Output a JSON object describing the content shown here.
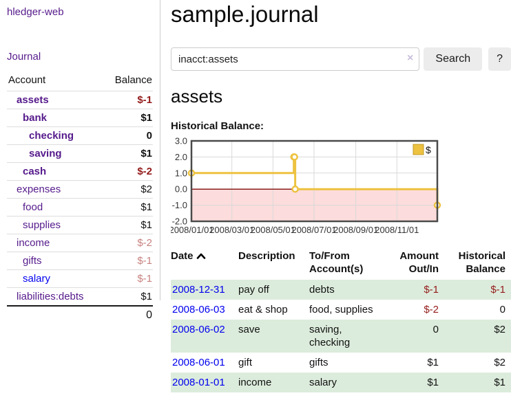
{
  "colors": {
    "link_visited_purple": "#551a8b",
    "link_blue": "#0000ee",
    "negative_strong": "#941b1b",
    "negative_soft": "#c78280",
    "row_stripe_green": "#dcecdc",
    "button_bg": "#ececec",
    "chart_series_gold": "#edc240",
    "chart_negative_region_pink": "#fcdcdc",
    "chart_zero_line_red": "#8b1c1c",
    "chart_border_gray": "#4a4a4a"
  },
  "app": {
    "title": "hledger-web",
    "nav_journal": "Journal"
  },
  "sidebar": {
    "columns": {
      "account": "Account",
      "balance": "Balance"
    },
    "accounts": [
      {
        "name": "assets",
        "level": 1,
        "bold": true,
        "name_color": "purple",
        "balance": "$-1",
        "balance_color": "negative-strong"
      },
      {
        "name": "bank",
        "level": 2,
        "bold": true,
        "name_color": "purple",
        "balance": "$1",
        "balance_color": "normal"
      },
      {
        "name": "checking",
        "level": 3,
        "bold": true,
        "name_color": "purple",
        "balance": "0",
        "balance_color": "normal"
      },
      {
        "name": "saving",
        "level": 3,
        "bold": true,
        "name_color": "purple",
        "balance": "$1",
        "balance_color": "normal"
      },
      {
        "name": "cash",
        "level": 2,
        "bold": true,
        "name_color": "purple",
        "balance": "$-2",
        "balance_color": "negative-strong"
      },
      {
        "name": "expenses",
        "level": 1,
        "bold": false,
        "name_color": "purple",
        "balance": "$2",
        "balance_color": "normal"
      },
      {
        "name": "food",
        "level": 2,
        "bold": false,
        "name_color": "purple",
        "balance": "$1",
        "balance_color": "normal"
      },
      {
        "name": "supplies",
        "level": 2,
        "bold": false,
        "name_color": "purple",
        "balance": "$1",
        "balance_color": "normal"
      },
      {
        "name": "income",
        "level": 1,
        "bold": false,
        "name_color": "purple",
        "balance": "$-2",
        "balance_color": "negative-soft"
      },
      {
        "name": "gifts",
        "level": 2,
        "bold": false,
        "name_color": "purple",
        "balance": "$-1",
        "balance_color": "negative-soft"
      },
      {
        "name": "salary",
        "level": 2,
        "bold": false,
        "name_color": "blue",
        "balance": "$-1",
        "balance_color": "negative-soft"
      },
      {
        "name": "liabilities:debts",
        "level": 1,
        "bold": false,
        "name_color": "purple",
        "balance": "$1",
        "balance_color": "normal"
      }
    ],
    "total": "0"
  },
  "main": {
    "title": "sample.journal",
    "search": {
      "value": "inacct:assets",
      "clear_icon": "×",
      "search_button": "Search",
      "help_button": "?"
    },
    "account_heading": "assets",
    "section_label": "Historical Balance:",
    "register": {
      "headers": [
        {
          "lines": [
            "Date"
          ],
          "align": "left",
          "sorted": "asc"
        },
        {
          "lines": [
            "Description"
          ],
          "align": "left"
        },
        {
          "lines": [
            "To/From",
            "Account(s)"
          ],
          "align": "left"
        },
        {
          "lines": [
            "Amount",
            "Out/In"
          ],
          "align": "right"
        },
        {
          "lines": [
            "Historical",
            "Balance"
          ],
          "align": "right"
        }
      ],
      "rows": [
        {
          "date": "2008-12-31",
          "description": "pay off",
          "accounts": "debts",
          "amount": "$-1",
          "amount_negative": true,
          "balance": "$-1",
          "balance_negative": true
        },
        {
          "date": "2008-06-03",
          "description": "eat & shop",
          "accounts": "food, supplies",
          "amount": "$-2",
          "amount_negative": true,
          "balance": "0",
          "balance_negative": false
        },
        {
          "date": "2008-06-02",
          "description": "save",
          "accounts": "saving, checking",
          "amount": "0",
          "amount_negative": false,
          "balance": "$2",
          "balance_negative": false
        },
        {
          "date": "2008-06-01",
          "description": "gift",
          "accounts": "gifts",
          "amount": "$1",
          "amount_negative": false,
          "balance": "$2",
          "balance_negative": false
        },
        {
          "date": "2008-01-01",
          "description": "income",
          "accounts": "salary",
          "amount": "$1",
          "amount_negative": false,
          "balance": "$1",
          "balance_negative": false
        }
      ]
    }
  },
  "chart_data": {
    "type": "line",
    "title": "Historical Balance",
    "step": true,
    "legend": [
      {
        "label": "$",
        "color": "#edc240"
      }
    ],
    "legend_position": "top-right",
    "series": [
      {
        "name": "$",
        "color": "#edc240",
        "points": [
          {
            "x": "2008-01-01",
            "y": 1
          },
          {
            "x": "2008-06-01",
            "y": 2
          },
          {
            "x": "2008-06-02",
            "y": 2
          },
          {
            "x": "2008-06-03",
            "y": 0
          },
          {
            "x": "2008-12-31",
            "y": -1
          }
        ]
      }
    ],
    "xlim": [
      "2008-01-01",
      "2008-12-31"
    ],
    "ylim": [
      -2,
      3
    ],
    "yticks": [
      {
        "v": 3,
        "label": "3.0"
      },
      {
        "v": 2,
        "label": "2.0"
      },
      {
        "v": 1,
        "label": "1.0"
      },
      {
        "v": 0,
        "label": "0.0"
      },
      {
        "v": -1,
        "label": "-1.0"
      },
      {
        "v": -2,
        "label": "-2.0"
      }
    ],
    "xticks": [
      {
        "date": "2008-01-01",
        "label": "2008/01/01"
      },
      {
        "date": "2008-03-01",
        "label": "2008/03/01"
      },
      {
        "date": "2008-05-01",
        "label": "2008/05/01"
      },
      {
        "date": "2008-07-01",
        "label": "2008/07/01"
      },
      {
        "date": "2008-09-01",
        "label": "2008/09/01"
      },
      {
        "date": "2008-11-01",
        "label": "2008/11/01"
      }
    ],
    "grid": true,
    "negative_region_color": "#fcdcdc",
    "zero_line_color": "#8b1c1c"
  }
}
